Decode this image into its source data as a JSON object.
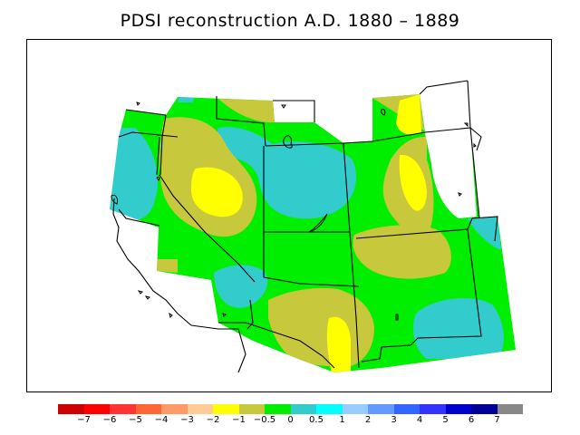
{
  "map": {
    "title": "PDSI reconstruction A.D. 1880 – 1889",
    "region": "Western United States",
    "regions": [
      {
        "class": "-1 to -0.5",
        "color": "#c8c83c"
      },
      {
        "class": "-2 to -1",
        "color": "#ffff00"
      },
      {
        "class": "-0.5 to 0",
        "color": "#00ee00"
      },
      {
        "class": "0 to 0.5",
        "color": "#33cccc"
      }
    ]
  },
  "legend": {
    "colors": [
      "#cc0000",
      "#ff0000",
      "#ff3333",
      "#ff6633",
      "#ff9966",
      "#ffcc99",
      "#ffff00",
      "#c8c83c",
      "#00ee00",
      "#33cccc",
      "#00ffff",
      "#99ccff",
      "#6699ff",
      "#3366ff",
      "#3333ff",
      "#0000cc",
      "#000099",
      "#888888"
    ],
    "labels": [
      "−7",
      "−6",
      "−5",
      "−4",
      "−3",
      "−2",
      "−1",
      "−0.5",
      "0",
      "0.5",
      "1",
      "2",
      "3",
      "4",
      "5",
      "6",
      "7"
    ]
  }
}
